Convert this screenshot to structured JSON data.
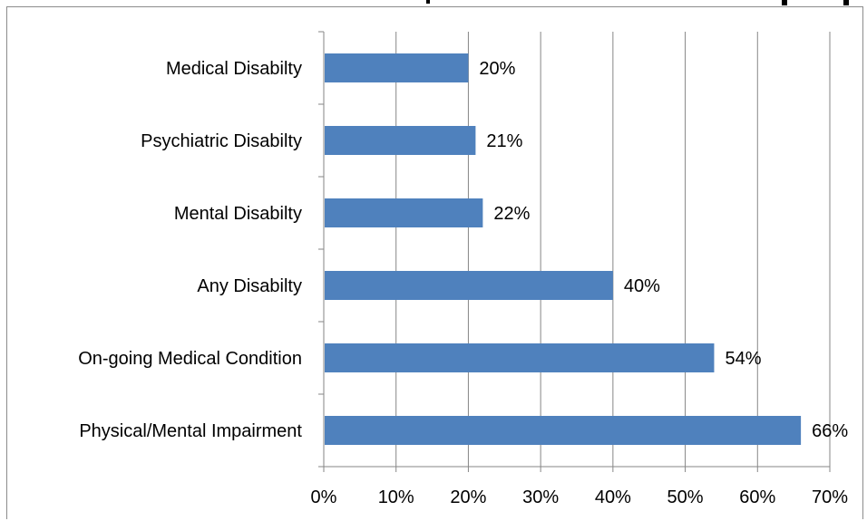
{
  "chart_data": {
    "type": "bar",
    "orientation": "horizontal",
    "categories": [
      "Medical Disabilty",
      "Psychiatric Disabilty",
      "Mental Disabilty",
      "Any Disabilty",
      "On-going Medical Condition",
      "Physical/Mental Impairment"
    ],
    "values": [
      20,
      21,
      22,
      40,
      54,
      66
    ],
    "data_labels": [
      "20%",
      "21%",
      "22%",
      "40%",
      "54%",
      "66%"
    ],
    "xlim": [
      0,
      70
    ],
    "x_ticks": [
      0,
      10,
      20,
      30,
      40,
      50,
      60,
      70
    ],
    "x_tick_labels": [
      "0%",
      "10%",
      "20%",
      "30%",
      "40%",
      "50%",
      "60%",
      "70%"
    ],
    "grid": "vertical",
    "legend": "none",
    "bar_color": "#4f81bd",
    "grid_color": "#868686",
    "axis_color": "#868686",
    "text_color": "#000000",
    "title": ""
  }
}
